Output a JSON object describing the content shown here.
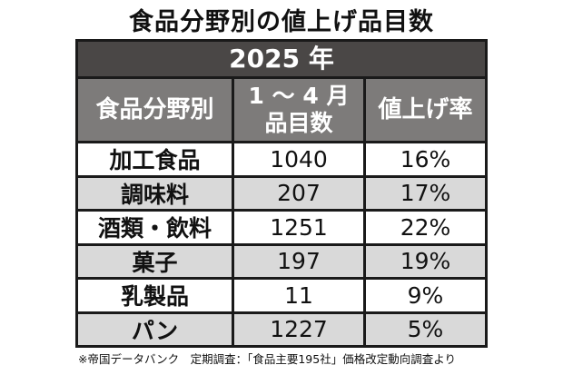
{
  "title": "食品分野別の値上げ品目数",
  "chart_data": {
    "type": "table",
    "title": "食品分野別の値上げ品目数",
    "group_header": "2025 年",
    "columns": [
      "食品分野別",
      "1 ～ 4 月",
      "品目数",
      "値上げ率"
    ],
    "rows": [
      {
        "category": "加工食品",
        "items": "1040",
        "rate": "16%"
      },
      {
        "category": "調味料",
        "items": "207",
        "rate": "17%"
      },
      {
        "category": "酒類・飲料",
        "items": "1251",
        "rate": "22%"
      },
      {
        "category": "菓子",
        "items": "197",
        "rate": "19%"
      },
      {
        "category": "乳製品",
        "items": "11",
        "rate": "9%"
      },
      {
        "category": "パン",
        "items": "1227",
        "rate": "5%"
      }
    ],
    "colors": {
      "year_header": "#4a4746",
      "column_header": "#7d7b7a",
      "alt_row": "#d9d9d9",
      "border": "#1a1a1a"
    }
  },
  "footnote": "※帝国データバンク　定期調査：「食品主要195社」価格改定動向調査より"
}
